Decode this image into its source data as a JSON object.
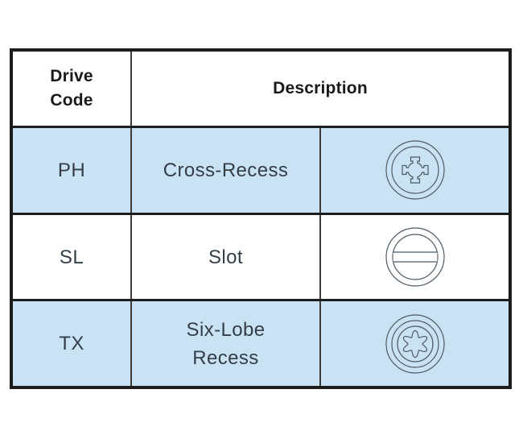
{
  "colors": {
    "row_highlight": "#cae3f4",
    "border_outer": "#1d1d1d",
    "border_inner": "#3d3d3d",
    "header_text": "#1a1a1a",
    "body_text": "#333e48",
    "icon_stroke": "#4e5a64"
  },
  "header": {
    "drive_code": "Drive\nCode",
    "description": "Description"
  },
  "rows": [
    {
      "code": "PH",
      "description": "Cross-Recess",
      "icon": "phillips-cross-recess-icon",
      "highlighted": true
    },
    {
      "code": "SL",
      "description": "Slot",
      "icon": "slot-icon",
      "highlighted": false
    },
    {
      "code": "TX",
      "description": "Six-Lobe\nRecess",
      "icon": "six-lobe-recess-icon",
      "highlighted": true
    }
  ]
}
